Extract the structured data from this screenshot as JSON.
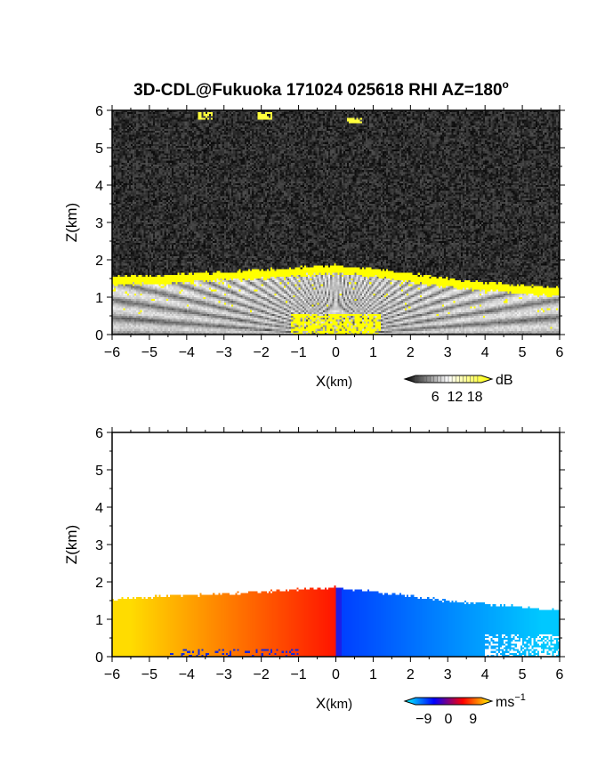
{
  "title": "3D-CDL@Fukuoka 171024 025618 RHI AZ=180",
  "title_superscript": "o",
  "chart_data": [
    {
      "type": "heatmap",
      "name": "backscatter",
      "xlabel_main": "X",
      "xlabel_unit": "(km)",
      "ylabel": "Z(km)",
      "xlim": [
        -6,
        6
      ],
      "ylim": [
        0,
        6
      ],
      "xticks": [
        -6,
        -5,
        -4,
        -3,
        -2,
        -1,
        0,
        1,
        2,
        3,
        4,
        5,
        6
      ],
      "yticks": [
        0,
        1,
        2,
        3,
        4,
        5,
        6
      ],
      "colorbar": {
        "unit": "dB",
        "ticks": [
          6,
          12,
          18
        ],
        "range": [
          0,
          20
        ],
        "colors": [
          "#000000",
          "#ffffff",
          "#ffff00"
        ]
      },
      "background": "noise ~2 dB",
      "boundary_layer_top_km": [
        [
          -6,
          1.55
        ],
        [
          -5,
          1.58
        ],
        [
          -4,
          1.62
        ],
        [
          -3,
          1.68
        ],
        [
          -2,
          1.72
        ],
        [
          -1,
          1.8
        ],
        [
          0,
          1.85
        ],
        [
          1,
          1.78
        ],
        [
          2,
          1.62
        ],
        [
          3,
          1.5
        ],
        [
          4,
          1.38
        ],
        [
          5,
          1.32
        ],
        [
          6,
          1.25
        ]
      ],
      "features": [
        {
          "x": -3.5,
          "z": 5.85,
          "label": "cloud"
        },
        {
          "x": -1.9,
          "z": 5.85,
          "label": "cloud"
        },
        {
          "x": 0.5,
          "z": 5.72,
          "label": "cloud"
        }
      ]
    },
    {
      "type": "heatmap",
      "name": "radial velocity",
      "xlabel_main": "X",
      "xlabel_unit": "(km)",
      "ylabel": "Z(km)",
      "xlim": [
        -6,
        6
      ],
      "ylim": [
        0,
        6
      ],
      "xticks": [
        -6,
        -5,
        -4,
        -3,
        -2,
        -1,
        0,
        1,
        2,
        3,
        4,
        5,
        6
      ],
      "yticks": [
        0,
        1,
        2,
        3,
        4,
        5,
        6
      ],
      "colorbar": {
        "unit": "ms",
        "unit_exp": "−1",
        "ticks": [
          "−9",
          "0",
          "9"
        ],
        "range": [
          -12,
          12
        ],
        "colors": [
          "#00ffff",
          "#0000ff",
          "#ff0000",
          "#ffff00"
        ]
      },
      "velocity_left_ms": 6,
      "velocity_right_ms": -6
    }
  ]
}
